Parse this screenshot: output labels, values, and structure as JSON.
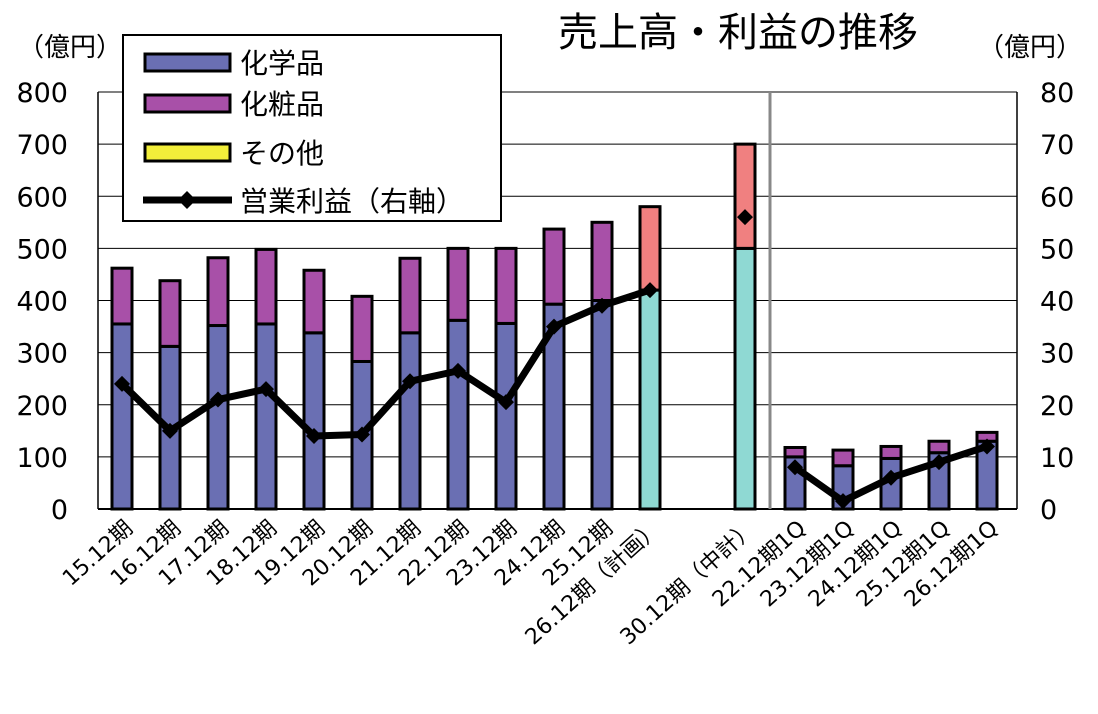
{
  "chart_data": {
    "type": "bar",
    "title": "売上高・利益の推移",
    "left_unit": "（億円）",
    "right_unit": "（億円）",
    "ylim": [
      0,
      800
    ],
    "y2lim": [
      0,
      80
    ],
    "yticks": [
      "0",
      "100",
      "200",
      "300",
      "400",
      "500",
      "600",
      "700",
      "800"
    ],
    "y2ticks": [
      "0",
      "10",
      "20",
      "30",
      "40",
      "50",
      "60",
      "70",
      "80"
    ],
    "categories": [
      "15.12期",
      "16.12期",
      "17.12期",
      "18.12期",
      "19.12期",
      "20.12期",
      "21.12期",
      "22.12期",
      "23.12期",
      "24.12期",
      "25.12期",
      "26.12期（計画）",
      "30.12期（中計）",
      "22.12期1Q",
      "23.12期1Q",
      "24.12期1Q",
      "25.12期1Q",
      "26.12期1Q"
    ],
    "series": [
      {
        "name": "化学品",
        "values": [
          355,
          312,
          352,
          355,
          338,
          283,
          338,
          362,
          356,
          393,
          400,
          null,
          null,
          100,
          83,
          97,
          108,
          130
        ]
      },
      {
        "name": "化粧品",
        "values": [
          107,
          126,
          130,
          143,
          120,
          125,
          143,
          138,
          144,
          144,
          150,
          null,
          null,
          18,
          30,
          23,
          22,
          17
        ]
      },
      {
        "name": "その他",
        "values": [
          0,
          0,
          0,
          0,
          0,
          0,
          0,
          0,
          0,
          0,
          0,
          null,
          null,
          0,
          0,
          0,
          0,
          0
        ]
      }
    ],
    "plan_series": {
      "values": [
        null,
        null,
        null,
        null,
        null,
        null,
        null,
        null,
        null,
        null,
        null,
        420,
        500,
        null,
        null,
        null,
        null,
        null
      ]
    },
    "plan_other": {
      "values": [
        null,
        null,
        null,
        null,
        null,
        null,
        null,
        null,
        null,
        null,
        null,
        160,
        200,
        null,
        null,
        null,
        null,
        null
      ]
    },
    "line_series": {
      "name": "営業利益（右軸）",
      "axis": "right",
      "values": [
        24,
        15,
        21,
        23,
        14,
        14.3,
        24.5,
        26.5,
        20.5,
        35,
        39,
        42,
        56,
        8,
        1.5,
        6,
        9,
        12
      ]
    },
    "legend": [
      {
        "label": "化学品",
        "color": "#6a6fb3"
      },
      {
        "label": "化粧品",
        "color": "#a850a8"
      },
      {
        "label": "その他",
        "color": "#f2ee3a"
      },
      {
        "label": "営業利益（右軸）",
        "color": "#000000"
      }
    ],
    "colors": {
      "chem": "#6a6fb3",
      "cosme": "#a850a8",
      "other": "#f2ee3a",
      "plan": "#8fd9d3",
      "plan_top": "#f08080",
      "line": "#000000",
      "grid": "#000000",
      "separator": "#888888"
    },
    "legend_position": "top-left",
    "grid": true
  }
}
